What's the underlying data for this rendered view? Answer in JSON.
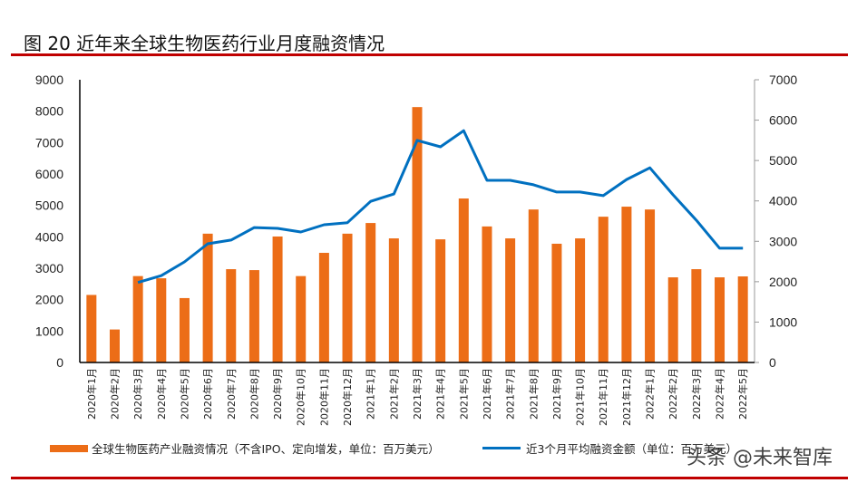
{
  "title": "图 20  近年来全球生物医药行业月度融资情况",
  "watermark": "头条 @未来智库",
  "chart_data": {
    "type": "bar+line",
    "title": "图 20  近年来全球生物医药行业月度融资情况",
    "categories": [
      "2020年1月",
      "2020年2月",
      "2020年3月",
      "2020年4月",
      "2020年5月",
      "2020年6月",
      "2020年7月",
      "2020年8月",
      "2020年9月",
      "2020年10月",
      "2020年11月",
      "2020年12月",
      "2021年1月",
      "2021年2月",
      "2021年3月",
      "2021年4月",
      "2021年5月",
      "2021年6月",
      "2021年7月",
      "2021年8月",
      "2021年9月",
      "2021年10月",
      "2021年11月",
      "2021年12月",
      "2022年1月",
      "2022年2月",
      "2022年3月",
      "2022年4月",
      "2022年5月"
    ],
    "series": [
      {
        "name": "全球生物医药产业融资情况（不含IPO、定向增发，单位：百万美元）",
        "type": "bar",
        "axis": "left",
        "color": "#ec6d17",
        "values": [
          2150,
          1050,
          2750,
          2680,
          2050,
          4100,
          2970,
          2940,
          4010,
          2750,
          3490,
          4100,
          4440,
          3950,
          8130,
          3920,
          5220,
          4330,
          3950,
          4870,
          3780,
          3950,
          4640,
          4960,
          4870,
          2710,
          2970,
          2710,
          2740
        ]
      },
      {
        "name": "近3个月平均融资金额（单位：百万美元）",
        "type": "line",
        "axis": "right",
        "color": "#0070c0",
        "values": [
          null,
          null,
          1980,
          2150,
          2490,
          2940,
          3030,
          3340,
          3320,
          3230,
          3410,
          3460,
          3990,
          4170,
          5500,
          5340,
          5740,
          4510,
          4510,
          4400,
          4220,
          4220,
          4130,
          4530,
          4820,
          4150,
          3520,
          2830,
          2830
        ]
      }
    ],
    "y_left": {
      "range": [
        0,
        9000
      ],
      "ticks": [
        "0",
        "1000",
        "2000",
        "3000",
        "4000",
        "5000",
        "6000",
        "7000",
        "8000",
        "9000"
      ]
    },
    "y_right": {
      "range": [
        0,
        7000
      ],
      "ticks": [
        "0",
        "1000",
        "2000",
        "3000",
        "4000",
        "5000",
        "6000",
        "7000"
      ]
    },
    "grid": false,
    "legend_placement": "bottom"
  }
}
